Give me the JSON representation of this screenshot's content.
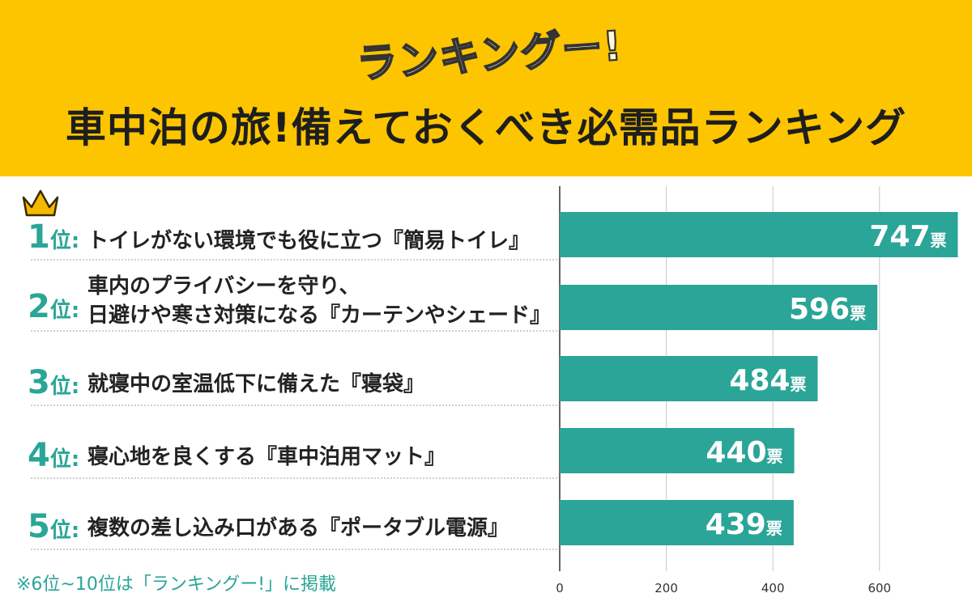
{
  "header": {
    "logo_text": "ランキングー!",
    "title": "車中泊の旅!備えておくべき必需品ランキング"
  },
  "rank_suffix": "位:",
  "unit": "票",
  "rows": [
    {
      "rank": "1",
      "label": "トイレがない環境でも役に立つ『簡易トイレ』"
    },
    {
      "rank": "2",
      "label": "車内のプライバシーを守り、\n日避けや寒さ対策になる『カーテンやシェード』"
    },
    {
      "rank": "3",
      "label": "就寝中の室温低下に備えた『寝袋』"
    },
    {
      "rank": "4",
      "label": "寝心地を良くする『車中泊用マット』"
    },
    {
      "rank": "5",
      "label": "複数の差し込み口がある『ポータブル電源』"
    }
  ],
  "note": "※6位~10位は「ランキングー!」に掲載",
  "colors": {
    "header_bg": "#fdc500",
    "bar": "#2aa597",
    "rank_text": "#2aa597",
    "crown": "#f5b800"
  },
  "chart_data": {
    "type": "bar",
    "orientation": "horizontal",
    "categories": [
      "トイレがない環境でも役に立つ『簡易トイレ』",
      "車内のプライバシーを守り、日避けや寒さ対策になる『カーテンやシェード』",
      "就寝中の室温低下に備えた『寝袋』",
      "寝心地を良くする『車中泊用マット』",
      "複数の差し込み口がある『ポータブル電源』"
    ],
    "values": [
      747,
      596,
      484,
      440,
      439
    ],
    "value_unit": "票",
    "xlim": [
      0,
      750
    ],
    "xticks": [
      0,
      200,
      400,
      600
    ],
    "grid": true
  }
}
